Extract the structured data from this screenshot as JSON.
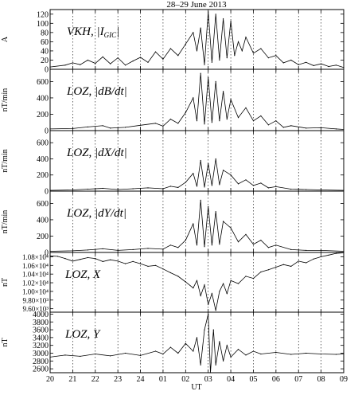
{
  "chart_data": {
    "type": "line",
    "title": "28–29 June 2013",
    "xlabel": "UT",
    "x_tick_labels": [
      "20",
      "21",
      "22",
      "23",
      "24",
      "01",
      "02",
      "03",
      "04",
      "05",
      "06",
      "07",
      "08",
      "09"
    ],
    "x_range_hours": [
      0,
      39
    ],
    "grid": "vertical dotted line at each hour tick",
    "panels": [
      {
        "id": "vkh",
        "label_text": "VKH, |I",
        "label_sub": "GIC",
        "label_tail": "|",
        "ylabel": "A",
        "ylim": [
          0,
          130
        ],
        "y_ticks": [
          "0",
          "20",
          "40",
          "60",
          "80",
          "100",
          "120"
        ],
        "series": [
          {
            "x": 0,
            "y": 5
          },
          {
            "x": 2,
            "y": 9
          },
          {
            "x": 3,
            "y": 14
          },
          {
            "x": 4,
            "y": 10
          },
          {
            "x": 5,
            "y": 20
          },
          {
            "x": 6,
            "y": 13
          },
          {
            "x": 7,
            "y": 27
          },
          {
            "x": 8,
            "y": 12
          },
          {
            "x": 9,
            "y": 25
          },
          {
            "x": 10,
            "y": 9
          },
          {
            "x": 11,
            "y": 18
          },
          {
            "x": 12,
            "y": 26
          },
          {
            "x": 13,
            "y": 15
          },
          {
            "x": 14,
            "y": 38
          },
          {
            "x": 15,
            "y": 22
          },
          {
            "x": 16,
            "y": 45
          },
          {
            "x": 17,
            "y": 30
          },
          {
            "x": 18,
            "y": 55
          },
          {
            "x": 19,
            "y": 80
          },
          {
            "x": 19.5,
            "y": 40
          },
          {
            "x": 20,
            "y": 90
          },
          {
            "x": 20.5,
            "y": 10
          },
          {
            "x": 21,
            "y": 125
          },
          {
            "x": 21.5,
            "y": 15
          },
          {
            "x": 22,
            "y": 120
          },
          {
            "x": 22.5,
            "y": 20
          },
          {
            "x": 23,
            "y": 110
          },
          {
            "x": 23.5,
            "y": 25
          },
          {
            "x": 24,
            "y": 105
          },
          {
            "x": 24.5,
            "y": 30
          },
          {
            "x": 25,
            "y": 60
          },
          {
            "x": 25.5,
            "y": 40
          },
          {
            "x": 26,
            "y": 70
          },
          {
            "x": 27,
            "y": 35
          },
          {
            "x": 28,
            "y": 45
          },
          {
            "x": 29,
            "y": 25
          },
          {
            "x": 30,
            "y": 30
          },
          {
            "x": 31,
            "y": 14
          },
          {
            "x": 32,
            "y": 20
          },
          {
            "x": 33,
            "y": 10
          },
          {
            "x": 34,
            "y": 15
          },
          {
            "x": 35,
            "y": 8
          },
          {
            "x": 36,
            "y": 12
          },
          {
            "x": 37,
            "y": 6
          },
          {
            "x": 38,
            "y": 9
          },
          {
            "x": 39,
            "y": 4
          }
        ]
      },
      {
        "id": "dbdt",
        "label_text": "LOZ, |dB/dt|",
        "ylabel": "nT/min",
        "ylim": [
          0,
          750
        ],
        "y_ticks": [
          "0",
          "200",
          "400",
          "600"
        ],
        "series": [
          {
            "x": 0,
            "y": 20
          },
          {
            "x": 3,
            "y": 25
          },
          {
            "x": 5,
            "y": 45
          },
          {
            "x": 7,
            "y": 60
          },
          {
            "x": 8,
            "y": 30
          },
          {
            "x": 10,
            "y": 40
          },
          {
            "x": 12,
            "y": 65
          },
          {
            "x": 14,
            "y": 90
          },
          {
            "x": 15,
            "y": 55
          },
          {
            "x": 16,
            "y": 140
          },
          {
            "x": 17,
            "y": 90
          },
          {
            "x": 18,
            "y": 220
          },
          {
            "x": 19,
            "y": 400
          },
          {
            "x": 19.5,
            "y": 120
          },
          {
            "x": 20,
            "y": 700
          },
          {
            "x": 20.5,
            "y": 80
          },
          {
            "x": 21,
            "y": 650
          },
          {
            "x": 21.5,
            "y": 100
          },
          {
            "x": 22,
            "y": 600
          },
          {
            "x": 22.5,
            "y": 120
          },
          {
            "x": 23,
            "y": 480
          },
          {
            "x": 23.5,
            "y": 140
          },
          {
            "x": 24,
            "y": 380
          },
          {
            "x": 25,
            "y": 160
          },
          {
            "x": 26,
            "y": 280
          },
          {
            "x": 27,
            "y": 120
          },
          {
            "x": 28,
            "y": 180
          },
          {
            "x": 29,
            "y": 70
          },
          {
            "x": 30,
            "y": 120
          },
          {
            "x": 31,
            "y": 40
          },
          {
            "x": 32,
            "y": 60
          },
          {
            "x": 34,
            "y": 30
          },
          {
            "x": 36,
            "y": 35
          },
          {
            "x": 38,
            "y": 20
          },
          {
            "x": 39,
            "y": 15
          }
        ]
      },
      {
        "id": "dxdt",
        "label_text": "LOZ, |dX/dt|",
        "ylabel": "nT/min",
        "ylim": [
          0,
          750
        ],
        "y_ticks": [
          "0",
          "200",
          "400",
          "600"
        ],
        "series": [
          {
            "x": 0,
            "y": 10
          },
          {
            "x": 3,
            "y": 15
          },
          {
            "x": 5,
            "y": 25
          },
          {
            "x": 7,
            "y": 35
          },
          {
            "x": 9,
            "y": 20
          },
          {
            "x": 11,
            "y": 30
          },
          {
            "x": 13,
            "y": 40
          },
          {
            "x": 15,
            "y": 30
          },
          {
            "x": 16,
            "y": 60
          },
          {
            "x": 17,
            "y": 45
          },
          {
            "x": 18,
            "y": 110
          },
          {
            "x": 19,
            "y": 220
          },
          {
            "x": 19.5,
            "y": 60
          },
          {
            "x": 20,
            "y": 380
          },
          {
            "x": 20.5,
            "y": 50
          },
          {
            "x": 21,
            "y": 340
          },
          {
            "x": 21.5,
            "y": 70
          },
          {
            "x": 22,
            "y": 400
          },
          {
            "x": 22.5,
            "y": 80
          },
          {
            "x": 23,
            "y": 260
          },
          {
            "x": 24,
            "y": 200
          },
          {
            "x": 25,
            "y": 90
          },
          {
            "x": 26,
            "y": 140
          },
          {
            "x": 27,
            "y": 70
          },
          {
            "x": 28,
            "y": 100
          },
          {
            "x": 29,
            "y": 40
          },
          {
            "x": 30,
            "y": 55
          },
          {
            "x": 32,
            "y": 25
          },
          {
            "x": 34,
            "y": 20
          },
          {
            "x": 36,
            "y": 15
          },
          {
            "x": 39,
            "y": 10
          }
        ]
      },
      {
        "id": "dydt",
        "label_text": "LOZ, |dY/dt|",
        "ylabel": "nT/min",
        "ylim": [
          0,
          750
        ],
        "y_ticks": [
          "0",
          "200",
          "400",
          "600"
        ],
        "series": [
          {
            "x": 0,
            "y": 15
          },
          {
            "x": 3,
            "y": 20
          },
          {
            "x": 5,
            "y": 30
          },
          {
            "x": 7,
            "y": 45
          },
          {
            "x": 9,
            "y": 25
          },
          {
            "x": 11,
            "y": 35
          },
          {
            "x": 13,
            "y": 50
          },
          {
            "x": 15,
            "y": 40
          },
          {
            "x": 16,
            "y": 90
          },
          {
            "x": 17,
            "y": 60
          },
          {
            "x": 18,
            "y": 150
          },
          {
            "x": 19,
            "y": 350
          },
          {
            "x": 19.5,
            "y": 90
          },
          {
            "x": 20,
            "y": 640
          },
          {
            "x": 20.5,
            "y": 70
          },
          {
            "x": 21,
            "y": 560
          },
          {
            "x": 21.5,
            "y": 90
          },
          {
            "x": 22,
            "y": 500
          },
          {
            "x": 22.5,
            "y": 100
          },
          {
            "x": 23,
            "y": 380
          },
          {
            "x": 24,
            "y": 300
          },
          {
            "x": 25,
            "y": 130
          },
          {
            "x": 26,
            "y": 220
          },
          {
            "x": 27,
            "y": 100
          },
          {
            "x": 28,
            "y": 150
          },
          {
            "x": 29,
            "y": 60
          },
          {
            "x": 30,
            "y": 90
          },
          {
            "x": 32,
            "y": 35
          },
          {
            "x": 34,
            "y": 25
          },
          {
            "x": 36,
            "y": 25
          },
          {
            "x": 39,
            "y": 15
          }
        ]
      },
      {
        "id": "x",
        "label_text": "LOZ, X",
        "ylabel": "nT",
        "ylim": [
          9520,
          10900
        ],
        "y_ticks": [
          "9.60×10³",
          "9.80×10³",
          "1.00×10⁴",
          "1.02×10⁴",
          "1.04×10⁴",
          "1.06×10⁴",
          "1.08×10⁴"
        ],
        "series": [
          {
            "x": 0,
            "y": 10820
          },
          {
            "x": 1,
            "y": 10810
          },
          {
            "x": 2,
            "y": 10760
          },
          {
            "x": 3,
            "y": 10700
          },
          {
            "x": 4,
            "y": 10740
          },
          {
            "x": 5,
            "y": 10780
          },
          {
            "x": 6,
            "y": 10760
          },
          {
            "x": 7,
            "y": 10690
          },
          {
            "x": 8,
            "y": 10730
          },
          {
            "x": 9,
            "y": 10700
          },
          {
            "x": 10,
            "y": 10640
          },
          {
            "x": 11,
            "y": 10690
          },
          {
            "x": 12,
            "y": 10640
          },
          {
            "x": 13,
            "y": 10580
          },
          {
            "x": 14,
            "y": 10600
          },
          {
            "x": 15,
            "y": 10520
          },
          {
            "x": 16,
            "y": 10430
          },
          {
            "x": 17,
            "y": 10350
          },
          {
            "x": 18,
            "y": 10220
          },
          {
            "x": 19,
            "y": 10080
          },
          {
            "x": 19.5,
            "y": 10250
          },
          {
            "x": 20,
            "y": 9900
          },
          {
            "x": 20.5,
            "y": 10150
          },
          {
            "x": 21,
            "y": 9700
          },
          {
            "x": 21.5,
            "y": 9950
          },
          {
            "x": 22,
            "y": 9560
          },
          {
            "x": 22.5,
            "y": 10000
          },
          {
            "x": 23,
            "y": 10180
          },
          {
            "x": 23.5,
            "y": 9950
          },
          {
            "x": 24,
            "y": 10250
          },
          {
            "x": 25,
            "y": 10180
          },
          {
            "x": 26,
            "y": 10350
          },
          {
            "x": 27,
            "y": 10300
          },
          {
            "x": 28,
            "y": 10450
          },
          {
            "x": 29,
            "y": 10500
          },
          {
            "x": 30,
            "y": 10560
          },
          {
            "x": 31,
            "y": 10620
          },
          {
            "x": 32,
            "y": 10580
          },
          {
            "x": 33,
            "y": 10700
          },
          {
            "x": 34,
            "y": 10660
          },
          {
            "x": 35,
            "y": 10750
          },
          {
            "x": 36,
            "y": 10800
          },
          {
            "x": 37,
            "y": 10840
          },
          {
            "x": 38,
            "y": 10880
          },
          {
            "x": 39,
            "y": 10890
          }
        ]
      },
      {
        "id": "y",
        "label_text": "LOZ, Y",
        "ylabel": "nT",
        "ylim": [
          2500,
          4050
        ],
        "y_ticks": [
          "2600",
          "2800",
          "3000",
          "3200",
          "3400",
          "3600",
          "3800",
          "4000"
        ],
        "series": [
          {
            "x": 0,
            "y": 2900
          },
          {
            "x": 2,
            "y": 2950
          },
          {
            "x": 4,
            "y": 2920
          },
          {
            "x": 6,
            "y": 2980
          },
          {
            "x": 8,
            "y": 2930
          },
          {
            "x": 10,
            "y": 3000
          },
          {
            "x": 12,
            "y": 2940
          },
          {
            "x": 14,
            "y": 3050
          },
          {
            "x": 15,
            "y": 2980
          },
          {
            "x": 16,
            "y": 3150
          },
          {
            "x": 17,
            "y": 3000
          },
          {
            "x": 18,
            "y": 3250
          },
          {
            "x": 19,
            "y": 3050
          },
          {
            "x": 19.5,
            "y": 3400
          },
          {
            "x": 20,
            "y": 2700
          },
          {
            "x": 20.5,
            "y": 3600
          },
          {
            "x": 21,
            "y": 4000
          },
          {
            "x": 21.3,
            "y": 2500
          },
          {
            "x": 21.7,
            "y": 3600
          },
          {
            "x": 22,
            "y": 2700
          },
          {
            "x": 22.5,
            "y": 3300
          },
          {
            "x": 23,
            "y": 2800
          },
          {
            "x": 23.5,
            "y": 3200
          },
          {
            "x": 24,
            "y": 2900
          },
          {
            "x": 25,
            "y": 3100
          },
          {
            "x": 26,
            "y": 2950
          },
          {
            "x": 27,
            "y": 3050
          },
          {
            "x": 28,
            "y": 2980
          },
          {
            "x": 30,
            "y": 3020
          },
          {
            "x": 32,
            "y": 2970
          },
          {
            "x": 34,
            "y": 3000
          },
          {
            "x": 36,
            "y": 2980
          },
          {
            "x": 38,
            "y": 2970
          },
          {
            "x": 39,
            "y": 2980
          }
        ]
      }
    ]
  }
}
